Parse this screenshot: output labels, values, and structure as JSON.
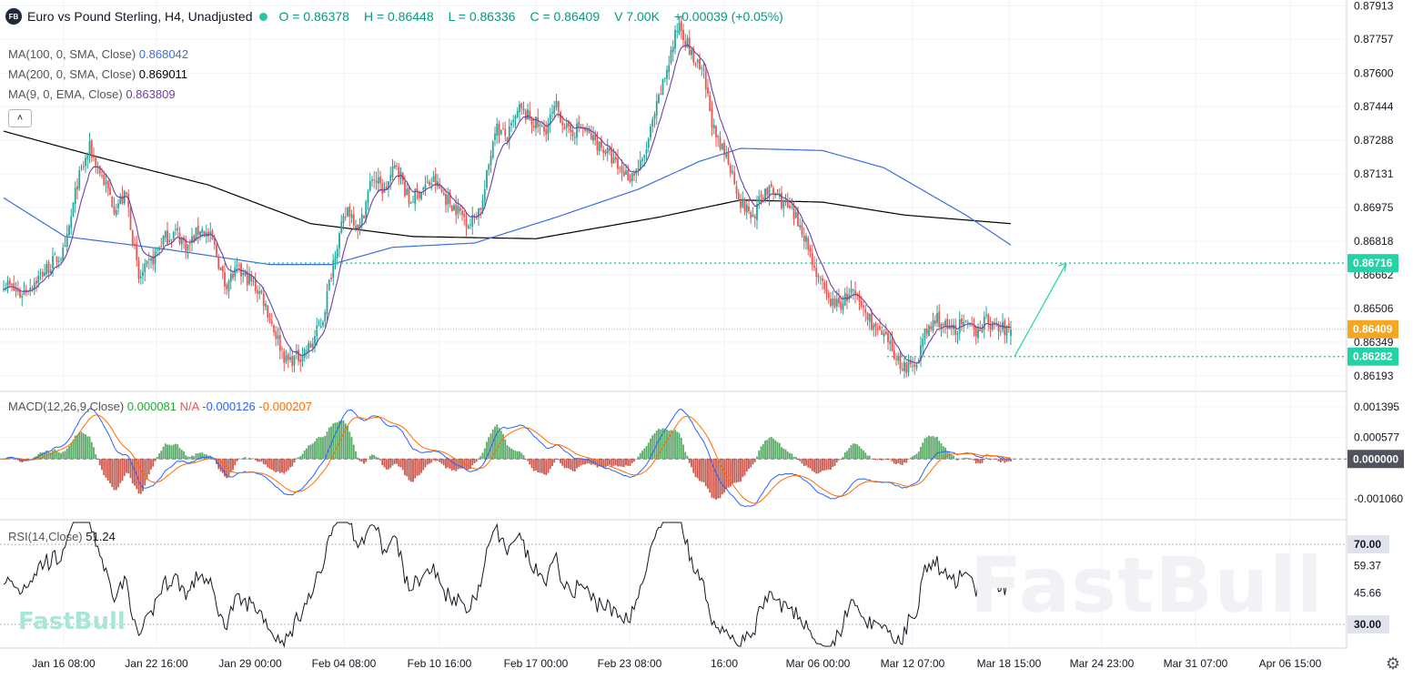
{
  "header": {
    "logo_text": "FB",
    "title": "Euro vs Pound Sterling, H4, Unadjusted",
    "open": "O = 0.86378",
    "high": "H = 0.86448",
    "low": "L = 0.86336",
    "close": "C = 0.86409",
    "volume": "V 7.00K",
    "change": "+0.00039 (+0.05%)"
  },
  "legend": {
    "ma100_label": "MA(100, 0, SMA, Close)",
    "ma100_value": "0.868042",
    "ma200_label": "MA(200, 0, SMA, Close)",
    "ma200_value": "0.869011",
    "ma9_label": "MA(9, 0, EMA, Close)",
    "ma9_value": "0.863809",
    "macd_label": "MACD(12,26,9,Close)",
    "macd_hist": "0.000081",
    "macd_na": "N/A",
    "macd_line": "-0.000126",
    "macd_signal": "-0.000207",
    "rsi_label": "RSI(14,Close)",
    "rsi_value": "51.24"
  },
  "colors": {
    "up": "#26a69a",
    "down": "#ef5350",
    "ma100": "#3a6fe0",
    "ma200": "#000000",
    "ma9": "#6e3fa5",
    "macd": "#2962ff",
    "signal": "#ff6d00",
    "accent": "#22d3a6",
    "price_tag": "#f5a623"
  },
  "icons": {
    "logo": "fastbull-logo",
    "collapse": "chevron-up-icon",
    "settings": "gear-icon"
  },
  "watermark": "FastBull",
  "watermark_small": "FastBull",
  "chart_data": {
    "type": "candlestick",
    "x_ticks": [
      "Jan 16 08:00",
      "Jan 22 16:00",
      "Jan 29 00:00",
      "Feb 04 08:00",
      "Feb 10 16:00",
      "Feb 17 00:00",
      "Feb 23 08:00",
      "16:00",
      "Mar 06 00:00",
      "Mar 12 07:00",
      "Mar 18 15:00",
      "Mar 24 23:00",
      "Mar 31 07:00",
      "Apr 06 15:00"
    ],
    "price_axis": {
      "ticks": [
        "0.87913",
        "0.87757",
        "0.87600",
        "0.87444",
        "0.87288",
        "0.87131",
        "0.86975",
        "0.86818",
        "0.86662",
        "0.86506",
        "0.86349",
        "0.86193"
      ],
      "ylim": [
        0.8612,
        0.8794
      ],
      "tags": [
        {
          "label": "0.86716",
          "value": 0.86716,
          "style": "accent"
        },
        {
          "label": "0.86409",
          "value": 0.86409,
          "style": "price"
        },
        {
          "label": "0.86282",
          "value": 0.86282,
          "style": "accent"
        }
      ],
      "horizontal_lines": [
        0.86716,
        0.86282
      ]
    },
    "macd_axis": {
      "ticks": [
        "0.001395",
        "0.000577",
        "0.000000",
        "-0.001060"
      ],
      "ylim": [
        -0.00165,
        0.00176
      ],
      "zero_tag": "0.000000"
    },
    "rsi_axis": {
      "ticks": [
        "70.00",
        "59.37",
        "45.66",
        "30.00"
      ],
      "ylim": [
        19,
        81
      ]
    },
    "close_keypoints": [
      [
        0,
        0.8663
      ],
      [
        8,
        0.8657
      ],
      [
        16,
        0.8664
      ],
      [
        24,
        0.8672
      ],
      [
        30,
        0.8677
      ],
      [
        36,
        0.8709
      ],
      [
        42,
        0.8725
      ],
      [
        48,
        0.8712
      ],
      [
        54,
        0.8698
      ],
      [
        60,
        0.8703
      ],
      [
        66,
        0.8664
      ],
      [
        72,
        0.8672
      ],
      [
        78,
        0.8683
      ],
      [
        84,
        0.8686
      ],
      [
        90,
        0.8679
      ],
      [
        96,
        0.8688
      ],
      [
        102,
        0.8682
      ],
      [
        108,
        0.8662
      ],
      [
        114,
        0.8668
      ],
      [
        120,
        0.8664
      ],
      [
        126,
        0.8657
      ],
      [
        132,
        0.8641
      ],
      [
        138,
        0.8626
      ],
      [
        144,
        0.8628
      ],
      [
        150,
        0.8633
      ],
      [
        156,
        0.8646
      ],
      [
        162,
        0.8678
      ],
      [
        168,
        0.8697
      ],
      [
        174,
        0.8688
      ],
      [
        180,
        0.8712
      ],
      [
        186,
        0.8705
      ],
      [
        192,
        0.8718
      ],
      [
        198,
        0.87
      ],
      [
        204,
        0.8706
      ],
      [
        210,
        0.871
      ],
      [
        216,
        0.8702
      ],
      [
        222,
        0.8696
      ],
      [
        228,
        0.869
      ],
      [
        234,
        0.87
      ],
      [
        240,
        0.8735
      ],
      [
        246,
        0.873
      ],
      [
        252,
        0.8743
      ],
      [
        258,
        0.8738
      ],
      [
        264,
        0.8733
      ],
      [
        270,
        0.8744
      ],
      [
        276,
        0.8732
      ],
      [
        282,
        0.8735
      ],
      [
        288,
        0.8729
      ],
      [
        294,
        0.8724
      ],
      [
        300,
        0.8716
      ],
      [
        306,
        0.8712
      ],
      [
        312,
        0.8718
      ],
      [
        318,
        0.874
      ],
      [
        324,
        0.8762
      ],
      [
        330,
        0.8784
      ],
      [
        336,
        0.8768
      ],
      [
        342,
        0.8758
      ],
      [
        348,
        0.8728
      ],
      [
        354,
        0.872
      ],
      [
        360,
        0.87
      ],
      [
        366,
        0.8693
      ],
      [
        372,
        0.8706
      ],
      [
        378,
        0.8703
      ],
      [
        384,
        0.8696
      ],
      [
        390,
        0.8688
      ],
      [
        396,
        0.867
      ],
      [
        402,
        0.8655
      ],
      [
        408,
        0.8652
      ],
      [
        414,
        0.8658
      ],
      [
        420,
        0.865
      ],
      [
        426,
        0.8641
      ],
      [
        432,
        0.8634
      ],
      [
        438,
        0.8625
      ],
      [
        444,
        0.8622
      ],
      [
        450,
        0.8638
      ],
      [
        456,
        0.8646
      ],
      [
        462,
        0.864
      ],
      [
        468,
        0.8643
      ],
      [
        474,
        0.864
      ],
      [
        480,
        0.8645
      ],
      [
        486,
        0.8641
      ],
      [
        492,
        0.86409
      ]
    ],
    "ma100_keypoints": [
      [
        0,
        0.8702
      ],
      [
        30,
        0.8684
      ],
      [
        80,
        0.8678
      ],
      [
        130,
        0.8671
      ],
      [
        160,
        0.8671
      ],
      [
        190,
        0.8679
      ],
      [
        230,
        0.8681
      ],
      [
        270,
        0.8693
      ],
      [
        310,
        0.8706
      ],
      [
        340,
        0.8719
      ],
      [
        360,
        0.8725
      ],
      [
        400,
        0.8724
      ],
      [
        430,
        0.8716
      ],
      [
        470,
        0.8694
      ],
      [
        492,
        0.868
      ]
    ],
    "ma200_keypoints": [
      [
        0,
        0.8733
      ],
      [
        50,
        0.872
      ],
      [
        100,
        0.8708
      ],
      [
        150,
        0.869
      ],
      [
        200,
        0.8684
      ],
      [
        260,
        0.8683
      ],
      [
        320,
        0.8693
      ],
      [
        360,
        0.8701
      ],
      [
        400,
        0.87
      ],
      [
        440,
        0.8694
      ],
      [
        492,
        0.869
      ]
    ],
    "forecast_arrow": {
      "from": [
        0.86282,
        "Mar 18 15:00"
      ],
      "to": [
        0.86716,
        "Mar 24 23:00"
      ]
    },
    "rsi_levels": [
      70,
      30
    ]
  }
}
